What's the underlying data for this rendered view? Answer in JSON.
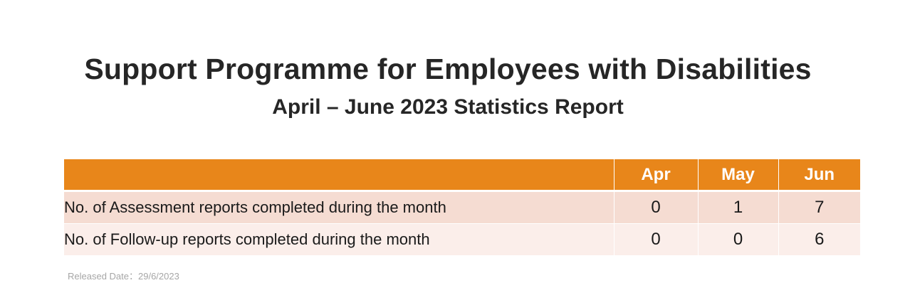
{
  "report": {
    "title": "Support Programme for Employees with Disabilities",
    "subtitle": "April – June 2023 Statistics Report",
    "released_date": "Released Date：29/6/2023"
  },
  "table": {
    "header_blank": "",
    "columns": [
      "Apr",
      "May",
      "Jun"
    ],
    "rows": [
      {
        "label": "No. of Assessment reports completed during the month",
        "values": [
          "0",
          "1",
          "7"
        ]
      },
      {
        "label": "No. of Follow-up reports completed during the month",
        "values": [
          "0",
          "0",
          "6"
        ]
      }
    ]
  },
  "colors": {
    "header_bg": "#e8861a",
    "row_odd_bg": "#f5dcd2",
    "row_even_bg": "#fbeeea",
    "text": "#262626"
  }
}
